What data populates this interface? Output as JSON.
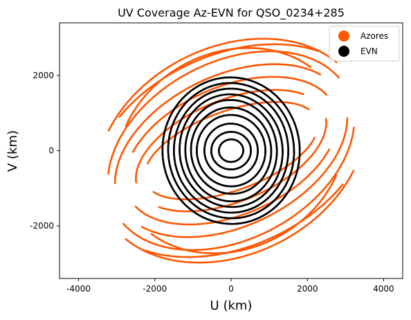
{
  "chart_data": {
    "type": "scatter",
    "title": "UV Coverage Az-EVN for QSO_0234+285",
    "xlabel": "U (km)",
    "ylabel": "V (km)",
    "xlim": [
      -4500,
      4500
    ],
    "ylim": [
      -3400,
      3400
    ],
    "xticks": [
      -4000,
      -2000,
      0,
      2000,
      4000
    ],
    "yticks": [
      -2000,
      0,
      2000
    ],
    "grid": false,
    "legend_position": "top-right",
    "series": [
      {
        "name": "Azores",
        "color": "#ff5500",
        "tracks": [
          {
            "a": 3700,
            "b": 2750,
            "tilt": 0.48,
            "t0": 0.3,
            "t1": 2.35
          },
          {
            "a": 3450,
            "b": 2350,
            "tilt": 0.5,
            "t0": 0.15,
            "t1": 2.7
          },
          {
            "a": 3250,
            "b": 2000,
            "tilt": 0.46,
            "t0": 0.4,
            "t1": 2.85
          },
          {
            "a": 2950,
            "b": 1700,
            "tilt": 0.42,
            "t0": 0.2,
            "t1": 2.5
          },
          {
            "a": 2650,
            "b": 1350,
            "tilt": 0.4,
            "t0": 0.5,
            "t1": 3.0
          },
          {
            "a": 2400,
            "b": 1050,
            "tilt": 0.36,
            "t0": 0.3,
            "t1": 2.7
          },
          {
            "a": 3850,
            "b": 2550,
            "tilt": 0.44,
            "t0": 0.6,
            "t1": 2.2
          },
          {
            "a": 3100,
            "b": 2600,
            "tilt": 0.52,
            "t0": 0.35,
            "t1": 2.3
          }
        ]
      },
      {
        "name": "EVN",
        "color": "#000000",
        "tracks": [
          {
            "a": 1800,
            "b": 1950,
            "tilt": 0.05,
            "t0": 0.0,
            "t1": 6.2832
          },
          {
            "a": 1650,
            "b": 1800,
            "tilt": 0.08,
            "t0": 0.0,
            "t1": 6.2832
          },
          {
            "a": 1500,
            "b": 1650,
            "tilt": 0.02,
            "t0": 0.0,
            "t1": 6.2832
          },
          {
            "a": 1350,
            "b": 1500,
            "tilt": 0.1,
            "t0": 0.0,
            "t1": 6.2832
          },
          {
            "a": 1200,
            "b": 1350,
            "tilt": 0.06,
            "t0": 0.0,
            "t1": 6.2832
          },
          {
            "a": 1050,
            "b": 1150,
            "tilt": 0.12,
            "t0": 0.0,
            "t1": 6.2832
          },
          {
            "a": 900,
            "b": 950,
            "tilt": 0.04,
            "t0": 0.0,
            "t1": 6.2832
          },
          {
            "a": 700,
            "b": 720,
            "tilt": 0.14,
            "t0": 0.0,
            "t1": 6.2832
          },
          {
            "a": 520,
            "b": 500,
            "tilt": 0.09,
            "t0": 0.0,
            "t1": 6.2832
          },
          {
            "a": 320,
            "b": 300,
            "tilt": 0.11,
            "t0": 0.0,
            "t1": 6.2832
          }
        ]
      }
    ]
  }
}
